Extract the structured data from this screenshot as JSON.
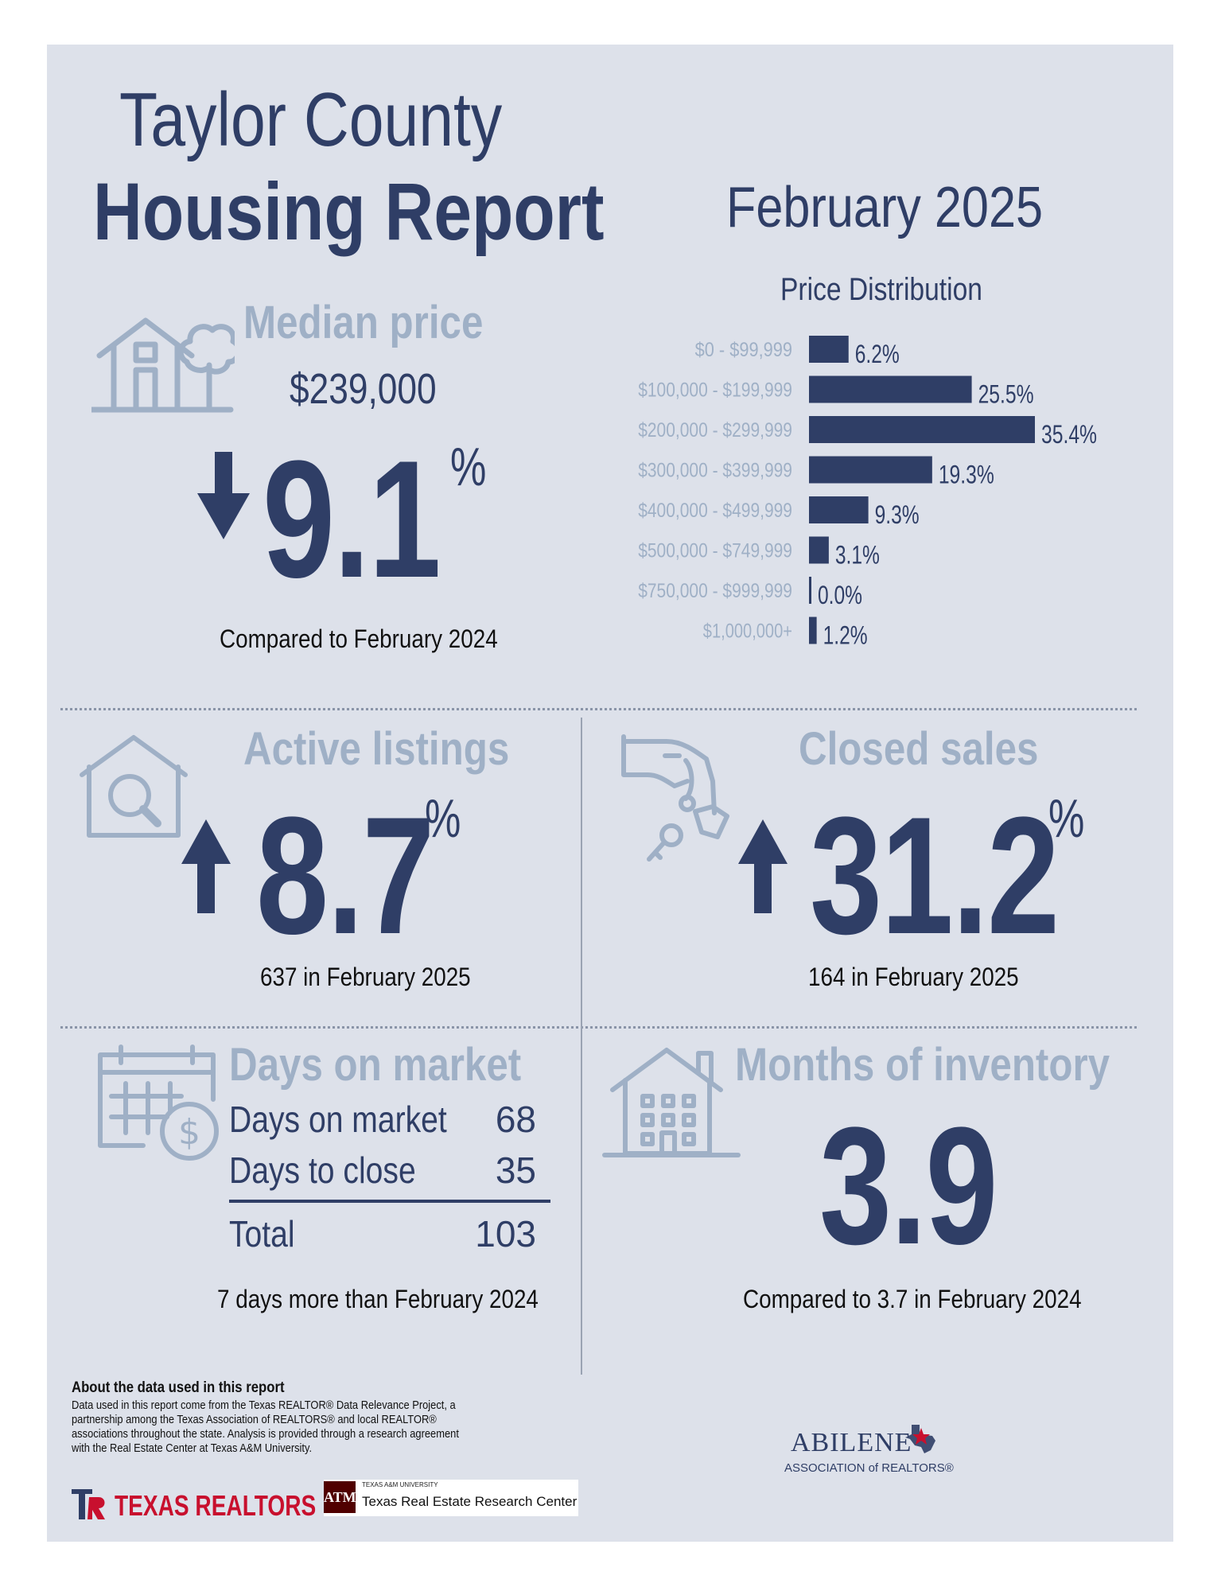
{
  "header": {
    "title_line1": "Taylor County",
    "title_line2": "Housing Report",
    "month": "February 2025"
  },
  "median_price": {
    "title": "Median price",
    "value": "$239,000",
    "change": "9.1",
    "change_unit": "%",
    "direction": "down",
    "note": "Compared to February 2024"
  },
  "chart_data": {
    "type": "bar",
    "orientation": "horizontal",
    "title": "Price Distribution",
    "categories": [
      "$0 - $99,999",
      "$100,000 - $199,999",
      "$200,000 - $299,999",
      "$300,000 - $399,999",
      "$400,000 - $499,999",
      "$500,000 - $749,999",
      "$750,000 - $999,999",
      "$1,000,000+"
    ],
    "values": [
      6.2,
      25.5,
      35.4,
      19.3,
      9.3,
      3.1,
      0.0,
      1.2
    ],
    "value_labels": [
      "6.2%",
      "25.5%",
      "35.4%",
      "19.3%",
      "9.3%",
      "3.1%",
      "0.0%",
      "1.2%"
    ],
    "bar_color": "#2f3e66"
  },
  "active_listings": {
    "title": "Active listings",
    "change": "8.7",
    "change_unit": "%",
    "direction": "up",
    "note": "637 in February 2025"
  },
  "closed_sales": {
    "title": "Closed sales",
    "change": "31.2",
    "change_unit": "%",
    "direction": "up",
    "note": "164 in February 2025"
  },
  "days_on_market": {
    "title": "Days on market",
    "rows": [
      {
        "label": "Days on market",
        "value": "68"
      },
      {
        "label": "Days to close",
        "value": "35"
      }
    ],
    "total_label": "Total",
    "total_value": "103",
    "note": "7 days more than February 2024"
  },
  "months_inventory": {
    "title": "Months of inventory",
    "value": "3.9",
    "note": "Compared to 3.7 in February 2024"
  },
  "footer": {
    "about_heading": "About the data used in this report",
    "about_lines": [
      "Data used in this report come from the Texas REALTOR® Data Relevance Project, a",
      "partnership among the Texas Association of REALTORS® and local REALTOR®",
      "associations throughout the state. Analysis is provided through a research agreement",
      "with the Real Estate Center at Texas A&M University."
    ],
    "logo_texas_realtors": "TEXAS REALTORS",
    "logo_tamu_small": "TEXAS A&M UNIVERSITY",
    "logo_tamu_center": "Texas Real Estate Research Center",
    "logo_abilene": "ABILENE",
    "logo_abilene_sub": "ASSOCIATION of REALTORS®"
  },
  "colors": {
    "navy": "#2f3e66",
    "slate": "#9fb0c6",
    "panel": "#dde1ea",
    "tamu_maroon": "#500000",
    "texas_red": "#c8102e"
  }
}
